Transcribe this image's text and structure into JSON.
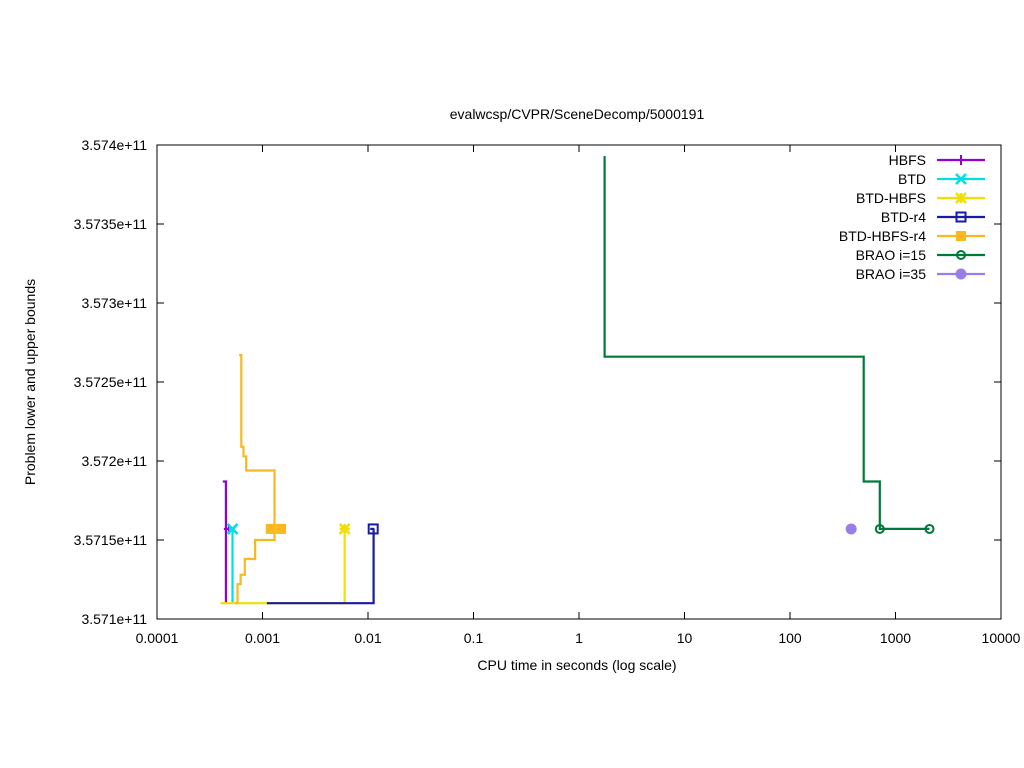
{
  "chart_data": {
    "type": "line",
    "title": "evalwcsp/CVPR/SceneDecomp/5000191",
    "xlabel": "CPU time in seconds (log scale)",
    "ylabel": "Problem lower and upper bounds",
    "x_scale": "log",
    "xlim": [
      0.0001,
      10000
    ],
    "ylim": [
      357100000000,
      357400000000
    ],
    "grid": false,
    "legend_position": "top-right",
    "x_ticks": [
      {
        "value": 0.0001,
        "label": "0.0001"
      },
      {
        "value": 0.001,
        "label": "0.001"
      },
      {
        "value": 0.01,
        "label": "0.01"
      },
      {
        "value": 0.1,
        "label": "0.1"
      },
      {
        "value": 1,
        "label": "1"
      },
      {
        "value": 10,
        "label": "10"
      },
      {
        "value": 100,
        "label": "100"
      },
      {
        "value": 1000,
        "label": "1000"
      },
      {
        "value": 10000,
        "label": "10000"
      }
    ],
    "y_ticks": [
      {
        "value": 357100000000,
        "label": "3.571e+11"
      },
      {
        "value": 357150000000,
        "label": "3.5715e+11"
      },
      {
        "value": 357200000000,
        "label": "3.572e+11"
      },
      {
        "value": 357250000000,
        "label": "3.5725e+11"
      },
      {
        "value": 357300000000,
        "label": "3.573e+11"
      },
      {
        "value": 357350000000,
        "label": "3.5735e+11"
      },
      {
        "value": 357400000000,
        "label": "3.574e+11"
      }
    ],
    "series": [
      {
        "name": "HBFS",
        "color": "#9400d3",
        "marker": "plus",
        "upper": [
          [
            0.00042,
            357187000000
          ],
          [
            0.00045,
            357187000000
          ],
          [
            0.00045,
            357157000000
          ],
          [
            0.00052,
            357157000000
          ]
        ],
        "lower": [
          [
            0.00045,
            357110000000
          ],
          [
            0.00045,
            357157000000
          ]
        ],
        "marker_points": [
          [
            0.00048,
            357157000000
          ]
        ]
      },
      {
        "name": "BTD",
        "color": "#00e0e0",
        "marker": "cross",
        "upper": [
          [
            0.00048,
            357157000000
          ],
          [
            0.00054,
            357157000000
          ]
        ],
        "lower": [
          [
            0.00052,
            357110000000
          ],
          [
            0.00052,
            357157000000
          ]
        ],
        "marker_points": [
          [
            0.00052,
            357157000000
          ]
        ]
      },
      {
        "name": "BTD-HBFS",
        "color": "#f0e000",
        "marker": "star",
        "upper": [
          [
            0.0057,
            357157000000
          ],
          [
            0.0062,
            357157000000
          ]
        ],
        "lower": [
          [
            0.0004,
            357110000000
          ],
          [
            0.006,
            357110000000
          ],
          [
            0.006,
            357157000000
          ]
        ],
        "marker_points": [
          [
            0.006,
            357157000000
          ]
        ]
      },
      {
        "name": "BTD-r4",
        "color": "#1a1aa8",
        "marker": "square",
        "upper": [
          [
            0.0105,
            357157000000
          ],
          [
            0.0115,
            357157000000
          ]
        ],
        "lower": [
          [
            0.0011,
            357110000000
          ],
          [
            0.0113,
            357110000000
          ],
          [
            0.0113,
            357157000000
          ]
        ],
        "marker_points": [
          [
            0.0112,
            357157000000
          ]
        ]
      },
      {
        "name": "BTD-HBFS-r4",
        "color": "#f8b820",
        "marker": "filled-square",
        "upper": [
          [
            0.0006,
            357267000000
          ],
          [
            0.00063,
            357267000000
          ],
          [
            0.00063,
            357209000000
          ],
          [
            0.00066,
            357209000000
          ],
          [
            0.00066,
            357203000000
          ],
          [
            0.0007,
            357203000000
          ],
          [
            0.0007,
            357194000000
          ],
          [
            0.0013,
            357194000000
          ],
          [
            0.0013,
            357157000000
          ],
          [
            0.0016,
            357157000000
          ]
        ],
        "lower": [
          [
            0.00055,
            357110000000
          ],
          [
            0.00058,
            357110000000
          ],
          [
            0.00058,
            357122000000
          ],
          [
            0.00062,
            357122000000
          ],
          [
            0.00062,
            357128000000
          ],
          [
            0.00068,
            357128000000
          ],
          [
            0.00068,
            357138000000
          ],
          [
            0.00085,
            357138000000
          ],
          [
            0.00085,
            357150000000
          ],
          [
            0.0013,
            357150000000
          ],
          [
            0.0013,
            357157000000
          ]
        ],
        "marker_points": [
          [
            0.0012,
            357157000000
          ],
          [
            0.0015,
            357157000000
          ]
        ]
      },
      {
        "name": "BRAO i=15",
        "color": "#007a3a",
        "marker": "circle",
        "upper": [
          [
            1.75,
            357393000000
          ],
          [
            1.75,
            357266000000
          ],
          [
            500,
            357266000000
          ],
          [
            500,
            357187000000
          ],
          [
            710,
            357187000000
          ],
          [
            710,
            357157000000
          ],
          [
            2100,
            357157000000
          ]
        ],
        "lower": [],
        "marker_points": [
          [
            710,
            357157000000
          ],
          [
            2100,
            357157000000
          ]
        ]
      },
      {
        "name": "BRAO i=35",
        "color": "#9a7ee8",
        "marker": "filled-circle",
        "upper": [],
        "lower": [],
        "marker_points": [
          [
            380,
            357157000000
          ]
        ]
      }
    ]
  }
}
